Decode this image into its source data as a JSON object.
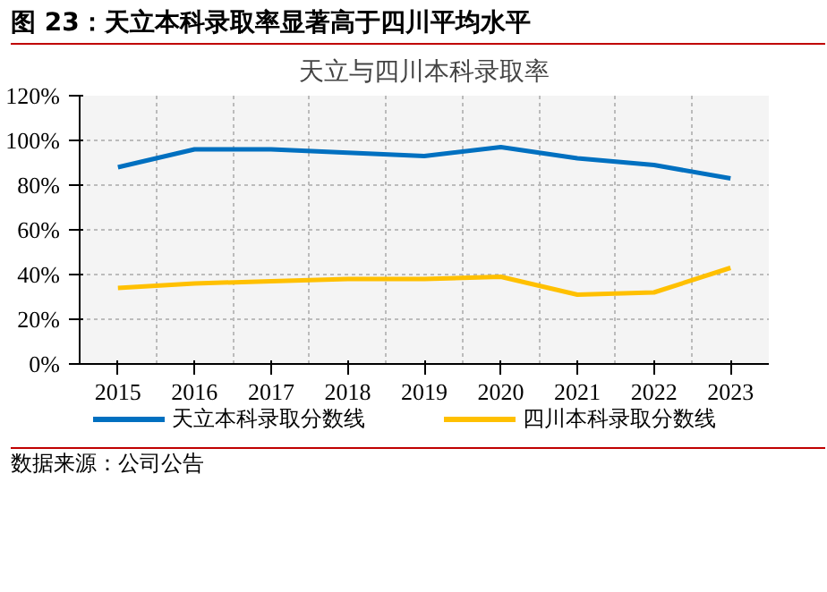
{
  "chart_data": {
    "type": "line",
    "title": "图 23：天立本科录取率显著高于四川平均水平",
    "subtitle": "天立与四川本科录取率",
    "categories": [
      "2015",
      "2016",
      "2017",
      "2018",
      "2019",
      "2020",
      "2021",
      "2022",
      "2023"
    ],
    "series": [
      {
        "name": "天立本科录取分数线",
        "color": "#0070c0",
        "values": [
          88,
          96,
          96,
          94.5,
          93,
          97,
          92,
          89,
          83
        ]
      },
      {
        "name": "四川本科录取分数线",
        "color": "#ffc000",
        "values": [
          34,
          36,
          37,
          38,
          38,
          39,
          31,
          32,
          43
        ]
      }
    ],
    "ylim": [
      0,
      120
    ],
    "yticks": [
      {
        "value": 0,
        "label": "0%"
      },
      {
        "value": 20,
        "label": "20%"
      },
      {
        "value": 40,
        "label": "40%"
      },
      {
        "value": 60,
        "label": "60%"
      },
      {
        "value": 80,
        "label": "80%"
      },
      {
        "value": 100,
        "label": "100%"
      },
      {
        "value": 120,
        "label": "120%"
      }
    ],
    "grid": true,
    "legend": "bottom",
    "marker": "none",
    "line_style": "solid",
    "annotations": [
      "数据来源：公司公告"
    ]
  }
}
